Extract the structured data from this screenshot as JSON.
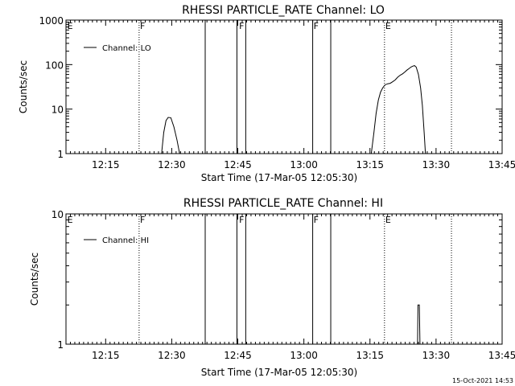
{
  "footer": {
    "timestamp": "15-Oct-2021 14:53"
  },
  "chart_data": [
    {
      "type": "line",
      "title": "RHESSI PARTICLE_RATE Channel: LO",
      "xlabel": "Start Time (17-Mar-05 12:05:30)",
      "ylabel": "Counts/sec",
      "yscale": "log",
      "xlim": [
        726,
        825
      ],
      "ylim": [
        1,
        1000
      ],
      "x_ticks": [
        {
          "v": 735,
          "label": "12:15"
        },
        {
          "v": 750,
          "label": "12:30"
        },
        {
          "v": 765,
          "label": "12:45"
        },
        {
          "v": 780,
          "label": "13:00"
        },
        {
          "v": 795,
          "label": "13:15"
        },
        {
          "v": 810,
          "label": "13:30"
        },
        {
          "v": 825,
          "label": "13:45"
        }
      ],
      "y_ticks": [
        {
          "v": 1,
          "label": "1"
        },
        {
          "v": 10,
          "label": "10"
        },
        {
          "v": 100,
          "label": "100"
        },
        {
          "v": 1000,
          "label": "1000"
        }
      ],
      "legend": {
        "placement": "top-left",
        "entries": [
          "Channel: LO"
        ]
      },
      "flag_labels": [
        {
          "x": 726.3,
          "label": "E"
        },
        {
          "x": 742.8,
          "label": "F"
        },
        {
          "x": 765.3,
          "label": "F"
        },
        {
          "x": 782.2,
          "label": "F"
        },
        {
          "x": 798.5,
          "label": "E"
        }
      ],
      "solid_markers": [
        757.6,
        764.8,
        766.8,
        782.0,
        786.1
      ],
      "dotted_markers": [
        742.6,
        798.3,
        813.5
      ],
      "series": [
        {
          "name": "Channel: LO",
          "segments": [
            [
              [
                747.7,
                1
              ],
              [
                748.2,
                3
              ],
              [
                748.7,
                5.5
              ],
              [
                749.2,
                6.5
              ],
              [
                749.8,
                6.4
              ],
              [
                750.5,
                4
              ],
              [
                751.2,
                2
              ],
              [
                751.8,
                1
              ]
            ],
            [
              [
                795.3,
                1
              ],
              [
                795.9,
                3
              ],
              [
                796.4,
                8
              ],
              [
                796.9,
                16
              ],
              [
                797.4,
                24
              ],
              [
                797.9,
                30
              ],
              [
                798.4,
                35
              ],
              [
                799.0,
                37
              ],
              [
                799.6,
                38
              ],
              [
                800.1,
                41
              ],
              [
                800.7,
                45
              ],
              [
                801.3,
                52
              ],
              [
                801.9,
                58
              ],
              [
                802.4,
                62
              ],
              [
                802.9,
                68
              ],
              [
                803.4,
                75
              ],
              [
                803.9,
                82
              ],
              [
                804.3,
                88
              ],
              [
                804.7,
                92
              ],
              [
                805.1,
                95
              ],
              [
                805.5,
                88
              ],
              [
                806.0,
                60
              ],
              [
                806.5,
                30
              ],
              [
                806.9,
                12
              ],
              [
                807.3,
                3
              ],
              [
                807.6,
                1
              ]
            ]
          ]
        }
      ]
    },
    {
      "type": "line",
      "title": "RHESSI PARTICLE_RATE Channel: HI",
      "xlabel": "Start Time (17-Mar-05 12:05:30)",
      "ylabel": "Counts/sec",
      "yscale": "log",
      "xlim": [
        726,
        825
      ],
      "ylim": [
        1,
        10
      ],
      "x_ticks": [
        {
          "v": 735,
          "label": "12:15"
        },
        {
          "v": 750,
          "label": "12:30"
        },
        {
          "v": 765,
          "label": "12:45"
        },
        {
          "v": 780,
          "label": "13:00"
        },
        {
          "v": 795,
          "label": "13:15"
        },
        {
          "v": 810,
          "label": "13:30"
        },
        {
          "v": 825,
          "label": "13:45"
        }
      ],
      "y_ticks": [
        {
          "v": 1,
          "label": "1"
        },
        {
          "v": 10,
          "label": "10"
        }
      ],
      "legend": {
        "placement": "top-left",
        "entries": [
          "Channel: HI"
        ]
      },
      "flag_labels": [
        {
          "x": 726.3,
          "label": "E"
        },
        {
          "x": 742.8,
          "label": "F"
        },
        {
          "x": 765.3,
          "label": "F"
        },
        {
          "x": 782.2,
          "label": "F"
        },
        {
          "x": 798.5,
          "label": "E"
        }
      ],
      "solid_markers": [
        757.6,
        764.8,
        766.8,
        782.0,
        786.1
      ],
      "dotted_markers": [
        742.6,
        798.3,
        813.5
      ],
      "series": [
        {
          "name": "Channel: HI",
          "segments": [
            [
              [
                805.8,
                1
              ],
              [
                805.9,
                2
              ],
              [
                806.2,
                2
              ],
              [
                806.35,
                1
              ]
            ]
          ]
        }
      ]
    }
  ]
}
